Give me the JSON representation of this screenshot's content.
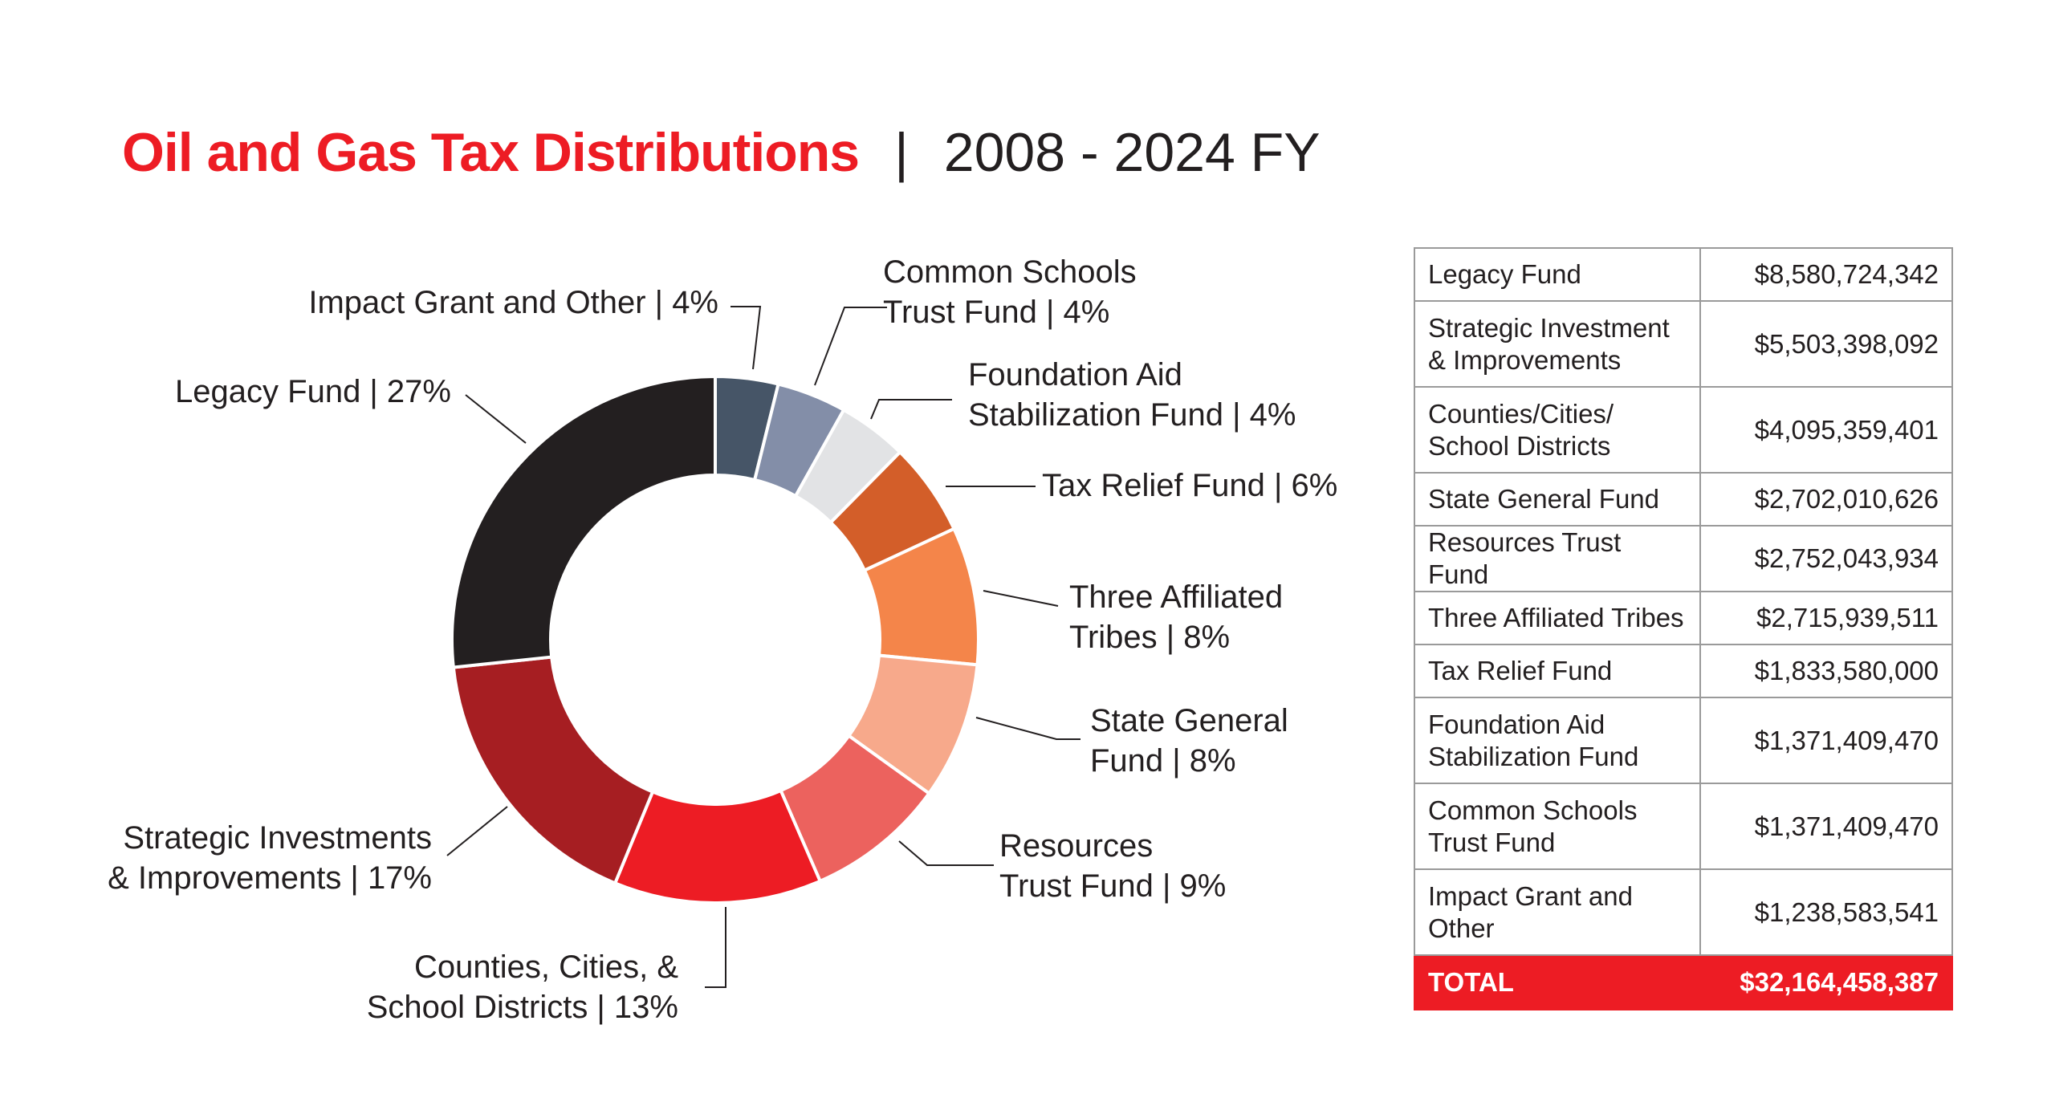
{
  "title": {
    "main": "Oil and Gas Tax Distributions",
    "separator": "|",
    "period": "2008 - 2024 FY"
  },
  "chart_data": {
    "type": "pie",
    "style": "donut",
    "title": "Oil and Gas Tax Distributions | 2008 - 2024 FY",
    "categories": [
      "Impact Grant and Other",
      "Common Schools Trust Fund",
      "Foundation Aid Stabilization Fund",
      "Tax Relief Fund",
      "Three Affiliated Tribes",
      "State General Fund",
      "Resources Trust Fund",
      "Counties, Cities, & School Districts",
      "Strategic Investments & Improvements",
      "Legacy Fund"
    ],
    "values": [
      1238583541,
      1371409470,
      1371409470,
      1833580000,
      2715939511,
      2702010626,
      2752043934,
      4095359401,
      5503398092,
      8580724342
    ],
    "percent_labels": [
      "4%",
      "4%",
      "4%",
      "6%",
      "8%",
      "8%",
      "9%",
      "13%",
      "17%",
      "27%"
    ],
    "colors": [
      "#465567",
      "#838ea8",
      "#e2e3e5",
      "#d35e29",
      "#f4854a",
      "#f7a98b",
      "#ec625e",
      "#ed1c24",
      "#a61e22",
      "#231f20"
    ],
    "labels": [
      [
        "Impact Grant and Other  |  4%"
      ],
      [
        "Common Schools",
        "Trust Fund  |  4%"
      ],
      [
        "Foundation Aid",
        "Stabilization Fund |  4%"
      ],
      [
        "Tax Relief Fund |  6%"
      ],
      [
        "Three Affiliated",
        "Tribes  |  8%"
      ],
      [
        "State General",
        "Fund  |  8%"
      ],
      [
        "Resources",
        "Trust Fund  |  9%"
      ],
      [
        "Counties, Cities, &",
        "School Districts  |  13%"
      ],
      [
        "Strategic Investments",
        "& Improvements  |  17%"
      ],
      [
        "Legacy Fund  |  27%"
      ]
    ]
  },
  "table": {
    "rows": [
      {
        "name": [
          "Legacy Fund"
        ],
        "value": "$8,580,724,342"
      },
      {
        "name": [
          "Strategic Investment",
          "& Improvements"
        ],
        "value": "$5,503,398,092"
      },
      {
        "name": [
          "Counties/Cities/",
          "School Districts"
        ],
        "value": "$4,095,359,401"
      },
      {
        "name": [
          "State General Fund"
        ],
        "value": "$2,702,010,626"
      },
      {
        "name": [
          "Resources Trust Fund"
        ],
        "value": "$2,752,043,934"
      },
      {
        "name": [
          "Three Affiliated Tribes"
        ],
        "value": "$2,715,939,511"
      },
      {
        "name": [
          "Tax Relief Fund"
        ],
        "value": "$1,833,580,000"
      },
      {
        "name": [
          "Foundation Aid",
          "Stabilization Fund"
        ],
        "value": "$1,371,409,470"
      },
      {
        "name": [
          "Common Schools",
          "Trust Fund"
        ],
        "value": "$1,371,409,470"
      },
      {
        "name": [
          "Impact Grant and",
          "Other"
        ],
        "value": "$1,238,583,541"
      }
    ],
    "total": {
      "label": "TOTAL",
      "value": "$32,164,458,387"
    }
  }
}
